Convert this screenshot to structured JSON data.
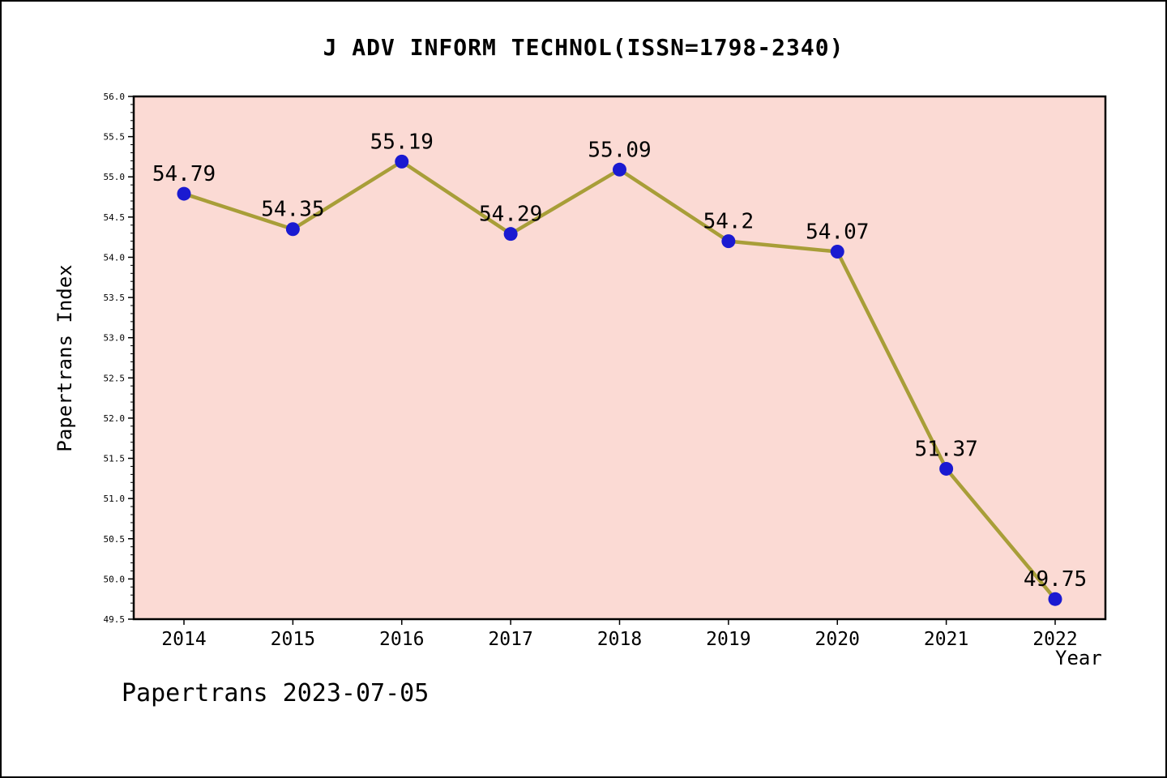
{
  "title": "J ADV INFORM TECHNOL(ISSN=1798-2340)",
  "footer": "Papertrans 2023-07-05",
  "chart_data": {
    "type": "line",
    "title": "J ADV INFORM TECHNOL(ISSN=1798-2340)",
    "xlabel": "Year",
    "ylabel": "Papertrans Index",
    "categories": [
      "2014",
      "2015",
      "2016",
      "2017",
      "2018",
      "2019",
      "2020",
      "2021",
      "2022"
    ],
    "values": [
      54.79,
      54.35,
      55.19,
      54.29,
      55.09,
      54.2,
      54.07,
      51.37,
      49.75
    ],
    "point_labels": [
      "54.79",
      "54.35",
      "55.19",
      "54.29",
      "55.09",
      "54.2",
      "54.07",
      "51.37",
      "49.75"
    ],
    "ylim": [
      49.5,
      56.0
    ],
    "ytick_labels": [
      "49.5",
      "50.0",
      "50.5",
      "51.0",
      "51.5",
      "52.0",
      "52.5",
      "53.0",
      "53.5",
      "54.0",
      "54.5",
      "55.0",
      "55.5",
      "56.0"
    ],
    "y_minor_step": 0.1,
    "grid": false,
    "legend": null,
    "colors": {
      "plot_bg": "#fbdad4",
      "line": "#a89e38",
      "marker": "#1a1ad1",
      "axis": "#000000",
      "text": "#000000"
    }
  }
}
